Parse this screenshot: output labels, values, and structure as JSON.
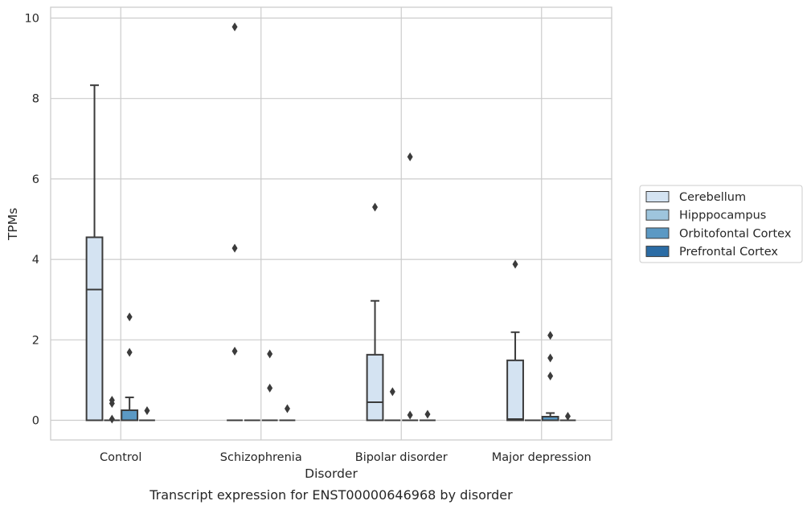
{
  "caption": "Transcript expression for ENST00000646968 by disorder",
  "chart_data": {
    "type": "box",
    "xlabel": "Disorder",
    "ylabel": "TPMs",
    "ylim": [
      -0.45,
      10.25
    ],
    "yticks": [
      0,
      2,
      4,
      6,
      8,
      10
    ],
    "grid": true,
    "legend_position": "right",
    "categories": [
      "Control",
      "Schizophrenia",
      "Bipolar disorder",
      "Major depression"
    ],
    "series": [
      {
        "name": "Cerebellum",
        "color": "#d4e3f2",
        "boxes": [
          {
            "min": 0,
            "q1": 0,
            "median": 3.25,
            "q3": 4.55,
            "max": 8.33,
            "outliers": []
          },
          {
            "min": 0,
            "q1": 0,
            "median": 0,
            "q3": 0,
            "max": 0,
            "outliers": [
              9.78,
              4.28,
              1.72
            ]
          },
          {
            "min": 0,
            "q1": 0,
            "median": 0.45,
            "q3": 1.63,
            "max": 2.97,
            "outliers": [
              5.3
            ]
          },
          {
            "min": 0,
            "q1": 0,
            "median": 0.03,
            "q3": 1.49,
            "max": 2.19,
            "outliers": [
              3.88
            ]
          }
        ]
      },
      {
        "name": "Hipppocampus",
        "color": "#9ec5dd",
        "boxes": [
          {
            "min": 0,
            "q1": 0,
            "median": 0,
            "q3": 0,
            "max": 0,
            "outliers": [
              0.5,
              0.42,
              0.03
            ]
          },
          {
            "min": 0,
            "q1": 0,
            "median": 0,
            "q3": 0,
            "max": 0,
            "outliers": []
          },
          {
            "min": 0,
            "q1": 0,
            "median": 0,
            "q3": 0,
            "max": 0,
            "outliers": [
              0.71
            ]
          },
          {
            "min": 0,
            "q1": 0,
            "median": 0,
            "q3": 0,
            "max": 0,
            "outliers": []
          }
        ]
      },
      {
        "name": "Orbitofontal Cortex",
        "color": "#5b99c4",
        "boxes": [
          {
            "min": 0,
            "q1": 0,
            "median": 0,
            "q3": 0.25,
            "max": 0.57,
            "outliers": [
              2.57,
              1.69
            ]
          },
          {
            "min": 0,
            "q1": 0,
            "median": 0,
            "q3": 0,
            "max": 0,
            "outliers": [
              1.65,
              0.8
            ]
          },
          {
            "min": 0,
            "q1": 0,
            "median": 0,
            "q3": 0,
            "max": 0,
            "outliers": [
              6.55,
              0.13
            ]
          },
          {
            "min": 0,
            "q1": 0,
            "median": 0,
            "q3": 0.09,
            "max": 0.18,
            "outliers": [
              2.11,
              1.55,
              1.1
            ]
          }
        ]
      },
      {
        "name": "Prefrontal Cortex",
        "color": "#2b6ca5",
        "boxes": [
          {
            "min": 0,
            "q1": 0,
            "median": 0,
            "q3": 0,
            "max": 0,
            "outliers": [
              0.24
            ]
          },
          {
            "min": 0,
            "q1": 0,
            "median": 0,
            "q3": 0,
            "max": 0,
            "outliers": [
              0.29
            ]
          },
          {
            "min": 0,
            "q1": 0,
            "median": 0,
            "q3": 0,
            "max": 0,
            "outliers": [
              0.15
            ]
          },
          {
            "min": 0,
            "q1": 0,
            "median": 0,
            "q3": 0,
            "max": 0,
            "outliers": [
              0.1
            ]
          }
        ]
      }
    ]
  }
}
